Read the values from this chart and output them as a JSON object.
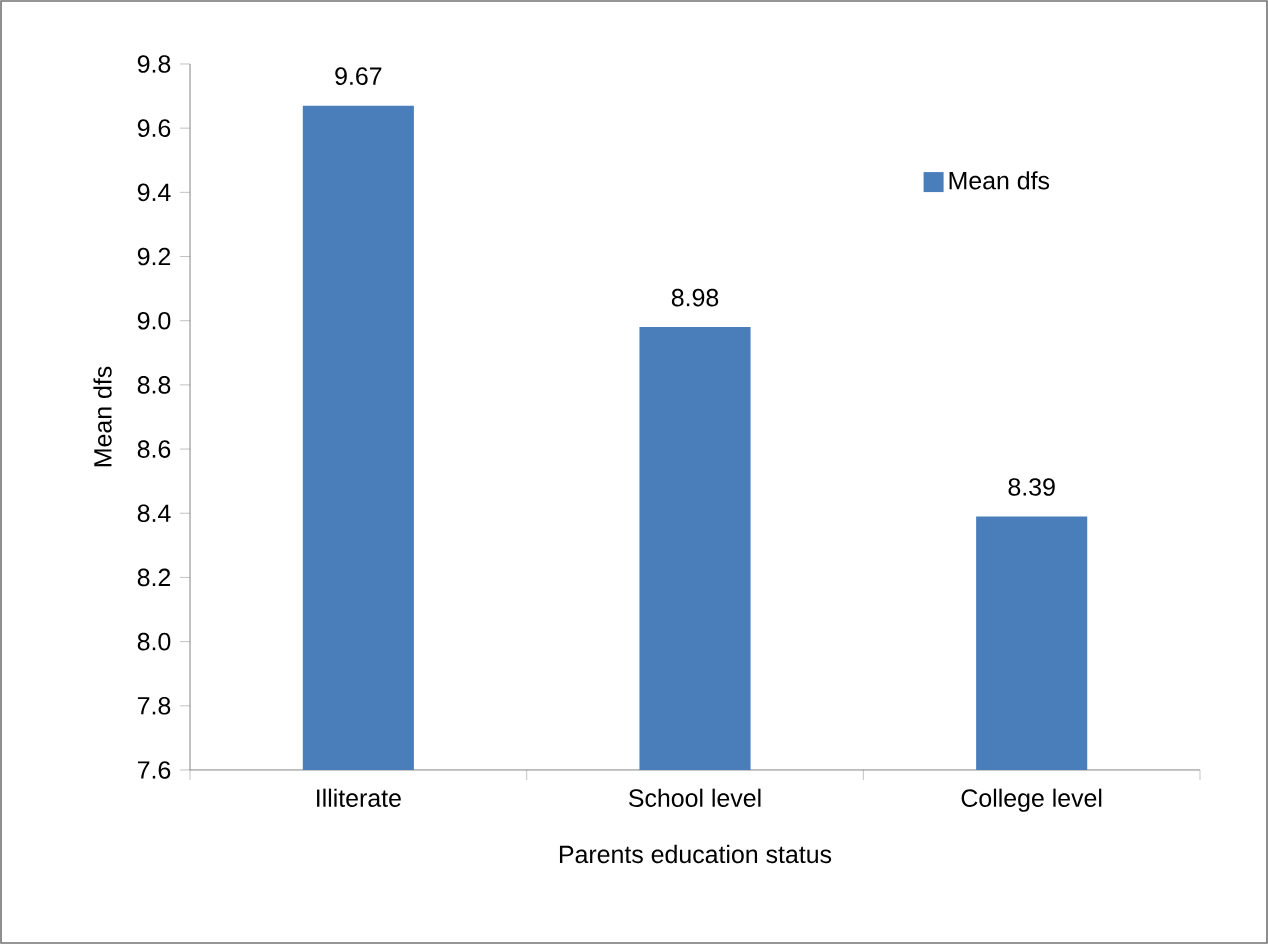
{
  "chart_data": {
    "type": "bar",
    "xlabel": "Parents education status",
    "ylabel": "Mean dfs",
    "categories": [
      "Illiterate",
      "School level",
      "College level"
    ],
    "series": [
      {
        "name": "Mean dfs",
        "color": "#4a7ebb",
        "values": [
          9.67,
          8.98,
          8.39
        ]
      }
    ],
    "ylim": [
      7.6,
      9.8
    ],
    "yticks": [
      7.6,
      7.8,
      {
        "value": 8,
        "label": "8.0"
      },
      8.2,
      8.4,
      8.6,
      8.8,
      {
        "value": 9,
        "label": "9.0"
      },
      9.2,
      9.4,
      9.6,
      9.8
    ],
    "data_labels": true,
    "legend": "top right",
    "grid": false
  }
}
